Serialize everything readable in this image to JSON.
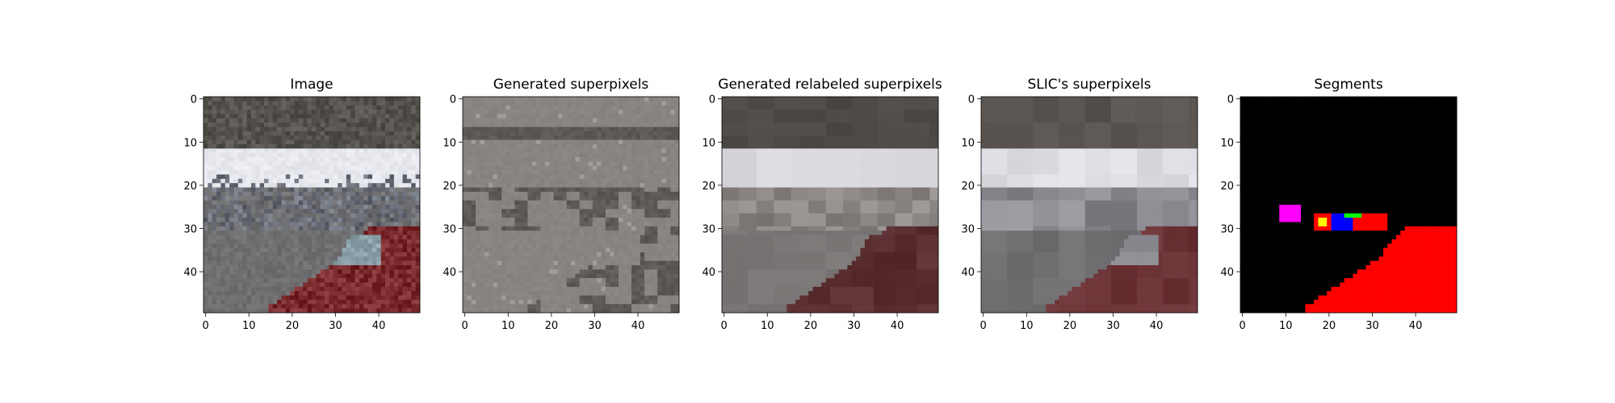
{
  "chart_data": [
    {
      "type": "image",
      "title": "Image",
      "xticks": [
        0,
        10,
        20,
        30,
        40
      ],
      "yticks": [
        0,
        10,
        20,
        30,
        40
      ],
      "xlim": [
        -0.5,
        49.5
      ],
      "ylim": [
        49.5,
        -0.5
      ],
      "render": "photo",
      "palette": {
        "ceiling": "#55524d",
        "sky": "#e6e8ee",
        "road": "#6f6f71",
        "car": "#7a2a2c",
        "windshield": "#8aa0a8",
        "buildings": "#6a6e78"
      }
    },
    {
      "type": "image",
      "title": "Generated superpixels",
      "xticks": [
        0,
        10,
        20,
        30,
        40
      ],
      "yticks": [
        0,
        10,
        20,
        30,
        40
      ],
      "xlim": [
        -0.5,
        49.5
      ],
      "ylim": [
        49.5,
        -0.5
      ],
      "render": "superpixels",
      "palette": {
        "base": "#8a8481",
        "dark": "#5c5956",
        "light": "#a29d9a"
      }
    },
    {
      "type": "image",
      "title": "Generated relabeled superpixels",
      "xticks": [
        0,
        10,
        20,
        30,
        40
      ],
      "yticks": [
        0,
        10,
        20,
        30,
        40
      ],
      "xlim": [
        -0.5,
        49.5
      ],
      "ylim": [
        49.5,
        -0.5
      ],
      "render": "relabeled",
      "palette": {
        "ceiling": "#4e4a47",
        "sky": "#d8d8dc",
        "road": "#7a7675",
        "car": "#5a2e30",
        "mid": "#8b8584"
      }
    },
    {
      "type": "image",
      "title": "SLIC's superpixels",
      "xticks": [
        0,
        10,
        20,
        30,
        40
      ],
      "yticks": [
        0,
        10,
        20,
        30,
        40
      ],
      "xlim": [
        -0.5,
        49.5
      ],
      "ylim": [
        49.5,
        -0.5
      ],
      "render": "slic",
      "palette": {
        "ceiling": "#5a5450",
        "sky": "#dcdde2",
        "road": "#707072",
        "car": "#6b3236",
        "mid": "#8a8a90"
      }
    },
    {
      "type": "image",
      "title": "Segments",
      "xticks": [
        0,
        10,
        20,
        30,
        40
      ],
      "yticks": [
        0,
        10,
        20,
        30,
        40
      ],
      "xlim": [
        -0.5,
        49.5
      ],
      "ylim": [
        49.5,
        -0.5
      ],
      "render": "segments",
      "palette": {
        "background": "#000000",
        "car": "#ff0000",
        "vehicle": "#0000ff",
        "person": "#ff00ff",
        "sign": "#ffff00",
        "pole": "#00ff00"
      }
    }
  ]
}
